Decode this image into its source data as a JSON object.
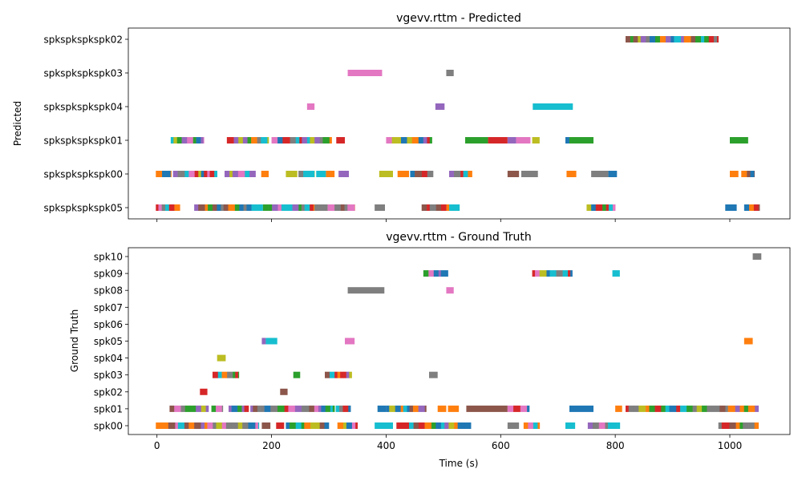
{
  "palette": [
    "#1f77b4",
    "#ff7f0e",
    "#2ca02c",
    "#d62728",
    "#9467bd",
    "#8c564b",
    "#e377c2",
    "#7f7f7f",
    "#bcbd22",
    "#17becf"
  ],
  "chart_data": [
    {
      "type": "timeline",
      "title": "vgevv.rttm - Predicted",
      "ylabel": "Predicted",
      "xlabel": "",
      "xlim": [
        -50,
        1105
      ],
      "xticks": [
        0,
        200,
        400,
        600,
        800,
        1000
      ],
      "show_xticklabels": false,
      "rows": [
        "spkspkspkspk05",
        "spkspkspkspk00",
        "spkspkspkspk01",
        "spkspkspkspk04",
        "spkspkspkspk03",
        "spkspkspkspk02"
      ],
      "segments": [
        {
          "row": "spkspkspkspk02",
          "start": 818,
          "end": 980,
          "dense": true
        },
        {
          "row": "spkspkspkspk03",
          "start": 333,
          "end": 393,
          "color": "#e377c2"
        },
        {
          "row": "spkspkspkspk03",
          "start": 505,
          "end": 518,
          "color": "#7f7f7f"
        },
        {
          "row": "spkspkspkspk04",
          "start": 262,
          "end": 275,
          "color": "#e377c2"
        },
        {
          "row": "spkspkspkspk04",
          "start": 486,
          "end": 502,
          "color": "#9467bd"
        },
        {
          "row": "spkspkspkspk04",
          "start": 656,
          "end": 726,
          "color": "#17becf"
        },
        {
          "row": "spkspkspkspk01",
          "start": 24,
          "end": 82,
          "dense": true
        },
        {
          "row": "spkspkspkspk01",
          "start": 122,
          "end": 195,
          "dense": true
        },
        {
          "row": "spkspkspkspk01",
          "start": 200,
          "end": 305,
          "dense": true
        },
        {
          "row": "spkspkspkspk01",
          "start": 313,
          "end": 328,
          "color": "#d62728"
        },
        {
          "row": "spkspkspkspk01",
          "start": 400,
          "end": 480,
          "dense": true
        },
        {
          "row": "spkspkspkspk01",
          "start": 538,
          "end": 578,
          "color": "#2ca02c"
        },
        {
          "row": "spkspkspkspk01",
          "start": 578,
          "end": 612,
          "color": "#d62728"
        },
        {
          "row": "spkspkspkspk01",
          "start": 612,
          "end": 627,
          "color": "#9467bd"
        },
        {
          "row": "spkspkspkspk01",
          "start": 627,
          "end": 652,
          "color": "#e377c2"
        },
        {
          "row": "spkspkspkspk01",
          "start": 655,
          "end": 668,
          "color": "#bcbd22"
        },
        {
          "row": "spkspkspkspk01",
          "start": 713,
          "end": 720,
          "color": "#1f77b4"
        },
        {
          "row": "spkspkspkspk01",
          "start": 720,
          "end": 762,
          "color": "#2ca02c"
        },
        {
          "row": "spkspkspkspk01",
          "start": 1000,
          "end": 1032,
          "color": "#2ca02c"
        },
        {
          "row": "spkspkspkspk00",
          "start": -2,
          "end": 25,
          "dense": true
        },
        {
          "row": "spkspkspkspk00",
          "start": 28,
          "end": 105,
          "dense": true
        },
        {
          "row": "spkspkspkspk00",
          "start": 118,
          "end": 172,
          "dense": true
        },
        {
          "row": "spkspkspkspk00",
          "start": 182,
          "end": 195,
          "color": "#ff7f0e"
        },
        {
          "row": "spkspkspkspk00",
          "start": 225,
          "end": 245,
          "color": "#bcbd22"
        },
        {
          "row": "spkspkspkspk00",
          "start": 247,
          "end": 275,
          "dense": true
        },
        {
          "row": "spkspkspkspk00",
          "start": 278,
          "end": 295,
          "color": "#17becf"
        },
        {
          "row": "spkspkspkspk00",
          "start": 295,
          "end": 310,
          "color": "#ff7f0e"
        },
        {
          "row": "spkspkspkspk00",
          "start": 317,
          "end": 335,
          "color": "#9467bd"
        },
        {
          "row": "spkspkspkspk00",
          "start": 388,
          "end": 412,
          "color": "#bcbd22"
        },
        {
          "row": "spkspkspkspk00",
          "start": 420,
          "end": 440,
          "color": "#ff7f0e"
        },
        {
          "row": "spkspkspkspk00",
          "start": 442,
          "end": 482,
          "dense": true
        },
        {
          "row": "spkspkspkspk00",
          "start": 510,
          "end": 550,
          "dense": true
        },
        {
          "row": "spkspkspkspk00",
          "start": 612,
          "end": 632,
          "color": "#8c564b"
        },
        {
          "row": "spkspkspkspk00",
          "start": 636,
          "end": 665,
          "color": "#7f7f7f"
        },
        {
          "row": "spkspkspkspk00",
          "start": 715,
          "end": 732,
          "color": "#ff7f0e"
        },
        {
          "row": "spkspkspkspk00",
          "start": 758,
          "end": 788,
          "color": "#7f7f7f"
        },
        {
          "row": "spkspkspkspk00",
          "start": 788,
          "end": 803,
          "color": "#1f77b4"
        },
        {
          "row": "spkspkspkspk00",
          "start": 1000,
          "end": 1015,
          "color": "#ff7f0e"
        },
        {
          "row": "spkspkspkspk00",
          "start": 1020,
          "end": 1043,
          "dense": true
        },
        {
          "row": "spkspkspkspk05",
          "start": -2,
          "end": 40,
          "dense": true
        },
        {
          "row": "spkspkspkspk05",
          "start": 65,
          "end": 165,
          "dense": true
        },
        {
          "row": "spkspkspkspk05",
          "start": 165,
          "end": 185,
          "color": "#17becf"
        },
        {
          "row": "spkspkspkspk05",
          "start": 185,
          "end": 275,
          "dense": true
        },
        {
          "row": "spkspkspkspk05",
          "start": 275,
          "end": 298,
          "color": "#7f7f7f"
        },
        {
          "row": "spkspkspkspk05",
          "start": 298,
          "end": 345,
          "dense": true
        },
        {
          "row": "spkspkspkspk05",
          "start": 380,
          "end": 398,
          "color": "#7f7f7f"
        },
        {
          "row": "spkspkspkspk05",
          "start": 462,
          "end": 528,
          "dense": true
        },
        {
          "row": "spkspkspkspk05",
          "start": 750,
          "end": 800,
          "dense": true
        },
        {
          "row": "spkspkspkspk05",
          "start": 992,
          "end": 1012,
          "color": "#1f77b4"
        },
        {
          "row": "spkspkspkspk05",
          "start": 1025,
          "end": 1052,
          "dense": true
        }
      ]
    },
    {
      "type": "timeline",
      "title": "vgevv.rttm - Ground Truth",
      "ylabel": "Ground Truth",
      "xlabel": "Time (s)",
      "xlim": [
        -50,
        1105
      ],
      "xticks": [
        0,
        200,
        400,
        600,
        800,
        1000
      ],
      "show_xticklabels": true,
      "rows": [
        "spk00",
        "spk01",
        "spk02",
        "spk03",
        "spk04",
        "spk05",
        "spk06",
        "spk07",
        "spk08",
        "spk09",
        "spk10"
      ],
      "segments": [
        {
          "row": "spk10",
          "start": 1040,
          "end": 1055,
          "color": "#7f7f7f"
        },
        {
          "row": "spk09",
          "start": 465,
          "end": 508,
          "dense": true
        },
        {
          "row": "spk09",
          "start": 655,
          "end": 725,
          "dense": true
        },
        {
          "row": "spk09",
          "start": 795,
          "end": 808,
          "color": "#17becf"
        },
        {
          "row": "spk08",
          "start": 333,
          "end": 397,
          "color": "#7f7f7f"
        },
        {
          "row": "spk08",
          "start": 505,
          "end": 518,
          "color": "#e377c2"
        },
        {
          "row": "spk05",
          "start": 183,
          "end": 190,
          "color": "#9467bd"
        },
        {
          "row": "spk05",
          "start": 190,
          "end": 210,
          "color": "#17becf"
        },
        {
          "row": "spk05",
          "start": 328,
          "end": 345,
          "color": "#e377c2"
        },
        {
          "row": "spk05",
          "start": 1025,
          "end": 1040,
          "color": "#ff7f0e"
        },
        {
          "row": "spk04",
          "start": 105,
          "end": 120,
          "color": "#bcbd22"
        },
        {
          "row": "spk03",
          "start": 97,
          "end": 143,
          "dense": true
        },
        {
          "row": "spk03",
          "start": 238,
          "end": 250,
          "color": "#2ca02c"
        },
        {
          "row": "spk03",
          "start": 293,
          "end": 340,
          "dense": true
        },
        {
          "row": "spk03",
          "start": 475,
          "end": 490,
          "color": "#7f7f7f"
        },
        {
          "row": "spk02",
          "start": 75,
          "end": 88,
          "color": "#d62728"
        },
        {
          "row": "spk02",
          "start": 215,
          "end": 228,
          "color": "#8c564b"
        },
        {
          "row": "spk01",
          "start": 22,
          "end": 90,
          "dense": true
        },
        {
          "row": "spk01",
          "start": 95,
          "end": 115,
          "dense": true
        },
        {
          "row": "spk01",
          "start": 125,
          "end": 160,
          "dense": true
        },
        {
          "row": "spk01",
          "start": 163,
          "end": 310,
          "dense": true
        },
        {
          "row": "spk01",
          "start": 312,
          "end": 338,
          "dense": true
        },
        {
          "row": "spk01",
          "start": 385,
          "end": 400,
          "color": "#1f77b4"
        },
        {
          "row": "spk01",
          "start": 400,
          "end": 470,
          "dense": true
        },
        {
          "row": "spk01",
          "start": 490,
          "end": 505,
          "color": "#ff7f0e"
        },
        {
          "row": "spk01",
          "start": 508,
          "end": 527,
          "color": "#ff7f0e"
        },
        {
          "row": "spk01",
          "start": 540,
          "end": 612,
          "color": "#8c564b"
        },
        {
          "row": "spk01",
          "start": 612,
          "end": 650,
          "dense": true
        },
        {
          "row": "spk01",
          "start": 720,
          "end": 762,
          "color": "#1f77b4"
        },
        {
          "row": "spk01",
          "start": 800,
          "end": 812,
          "color": "#ff7f0e"
        },
        {
          "row": "spk01",
          "start": 818,
          "end": 1050,
          "dense": true
        },
        {
          "row": "spk00",
          "start": -2,
          "end": 178,
          "dense": true
        },
        {
          "row": "spk00",
          "start": 183,
          "end": 198,
          "color": "#8c564b"
        },
        {
          "row": "spk00",
          "start": 208,
          "end": 222,
          "color": "#d62728"
        },
        {
          "row": "spk00",
          "start": 225,
          "end": 300,
          "dense": true
        },
        {
          "row": "spk00",
          "start": 315,
          "end": 350,
          "dense": true
        },
        {
          "row": "spk00",
          "start": 380,
          "end": 412,
          "color": "#17becf"
        },
        {
          "row": "spk00",
          "start": 418,
          "end": 440,
          "color": "#d62728"
        },
        {
          "row": "spk00",
          "start": 440,
          "end": 548,
          "dense": true
        },
        {
          "row": "spk00",
          "start": 612,
          "end": 632,
          "color": "#7f7f7f"
        },
        {
          "row": "spk00",
          "start": 640,
          "end": 668,
          "dense": true
        },
        {
          "row": "spk00",
          "start": 713,
          "end": 730,
          "color": "#17becf"
        },
        {
          "row": "spk00",
          "start": 752,
          "end": 808,
          "dense": true
        },
        {
          "row": "spk00",
          "start": 980,
          "end": 1050,
          "dense": true
        }
      ]
    }
  ]
}
